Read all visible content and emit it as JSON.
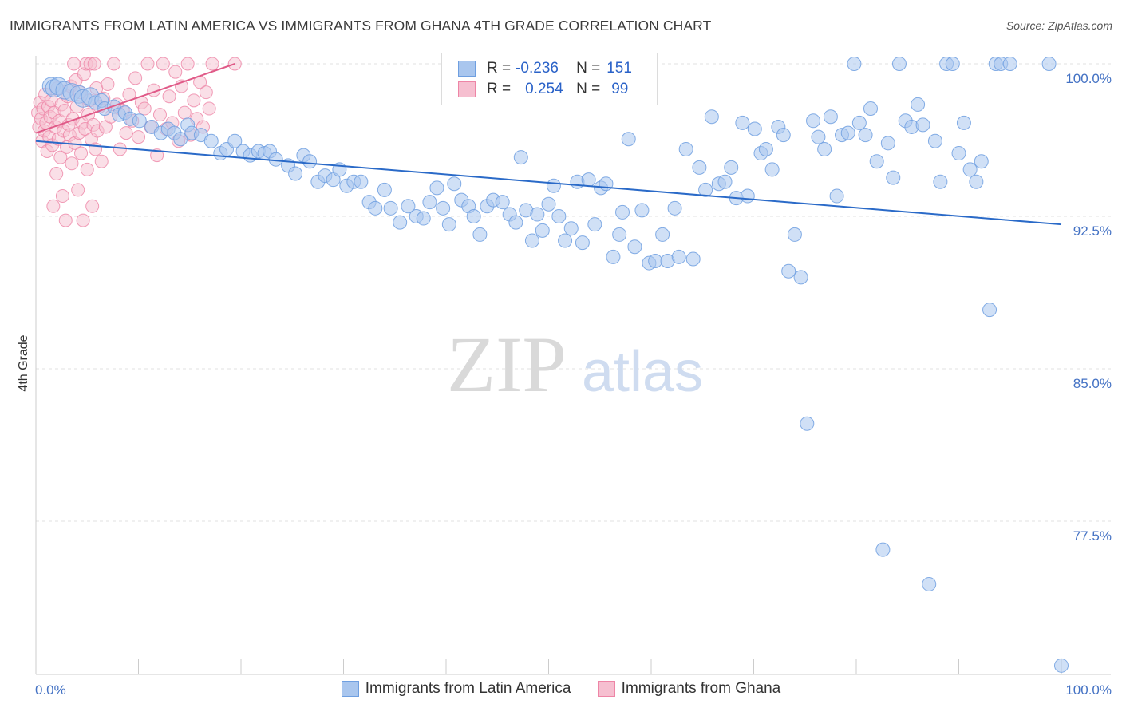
{
  "title": "IMMIGRANTS FROM LATIN AMERICA VS IMMIGRANTS FROM GHANA 4TH GRADE CORRELATION CHART",
  "source": "Source: ZipAtlas.com",
  "watermark": {
    "zip": "ZIP",
    "atlas": "atlas"
  },
  "colors": {
    "blue": "#6f9fe0",
    "blue_fill": "#a9c6ee",
    "blue_line": "#2a6ac8",
    "pink": "#ee85a6",
    "pink_fill": "#f6bfd0",
    "pink_line": "#e05a88",
    "grid": "#e2e2e2",
    "tick_text": "#4472c4"
  },
  "legend": {
    "rows": [
      {
        "r_label": "R =",
        "r_value": "-0.236",
        "n_label": "N =",
        "n_value": "151"
      },
      {
        "r_label": "R =",
        "r_value": "0.254",
        "n_label": "N =",
        "n_value": "99"
      }
    ]
  },
  "bottom_legend": [
    {
      "label": "Immigrants from Latin America"
    },
    {
      "label": "Immigrants from Ghana"
    }
  ],
  "chart_data": {
    "type": "scatter",
    "title": "IMMIGRANTS FROM LATIN AMERICA VS IMMIGRANTS FROM GHANA 4TH GRADE CORRELATION CHART",
    "xlabel": "",
    "ylabel": "4th Grade",
    "xlim": [
      0,
      100
    ],
    "ylim": [
      70.3,
      100.6
    ],
    "x_tick_labels": [
      "0.0%",
      "100.0%"
    ],
    "y_ticks": [
      {
        "value": 100.0,
        "label": "100.0%"
      },
      {
        "value": 92.5,
        "label": "92.5%"
      },
      {
        "value": 85.0,
        "label": "85.0%"
      },
      {
        "value": 77.5,
        "label": "77.5%"
      }
    ],
    "grid": true,
    "legend_position": "top-center",
    "series": [
      {
        "name": "Immigrants from Latin America",
        "color": "#6f9fe0",
        "trend": {
          "x": [
            0,
            100
          ],
          "y": [
            96.2,
            92.1
          ]
        },
        "points": [
          [
            1.5,
            98.9
          ],
          [
            1.8,
            98.8
          ],
          [
            2.2,
            98.9
          ],
          [
            2.8,
            98.7
          ],
          [
            3.5,
            98.6
          ],
          [
            4.2,
            98.5
          ],
          [
            4.6,
            98.3
          ],
          [
            5.3,
            98.4
          ],
          [
            5.8,
            98.1
          ],
          [
            6.4,
            98.2
          ],
          [
            6.7,
            97.8
          ],
          [
            7.6,
            97.9
          ],
          [
            8.1,
            97.5
          ],
          [
            8.7,
            97.6
          ],
          [
            9.2,
            97.3
          ],
          [
            10.1,
            97.2
          ],
          [
            11.3,
            96.9
          ],
          [
            12.2,
            96.6
          ],
          [
            12.9,
            96.8
          ],
          [
            13.5,
            96.6
          ],
          [
            14.1,
            96.3
          ],
          [
            14.8,
            97.0
          ],
          [
            15.2,
            96.6
          ],
          [
            16.1,
            96.5
          ],
          [
            17.1,
            96.2
          ],
          [
            18.0,
            95.6
          ],
          [
            18.6,
            95.8
          ],
          [
            19.4,
            96.2
          ],
          [
            20.2,
            95.7
          ],
          [
            20.9,
            95.5
          ],
          [
            21.7,
            95.7
          ],
          [
            22.3,
            95.6
          ],
          [
            22.8,
            95.7
          ],
          [
            23.4,
            95.3
          ],
          [
            24.6,
            95.0
          ],
          [
            25.3,
            94.6
          ],
          [
            26.1,
            95.5
          ],
          [
            26.7,
            95.2
          ],
          [
            27.5,
            94.2
          ],
          [
            28.2,
            94.5
          ],
          [
            29.0,
            94.3
          ],
          [
            29.6,
            94.8
          ],
          [
            30.3,
            94.0
          ],
          [
            31.0,
            94.2
          ],
          [
            31.7,
            94.2
          ],
          [
            32.5,
            93.2
          ],
          [
            33.1,
            92.9
          ],
          [
            34.0,
            93.8
          ],
          [
            34.6,
            92.9
          ],
          [
            35.5,
            92.2
          ],
          [
            36.3,
            93.0
          ],
          [
            37.1,
            92.5
          ],
          [
            37.8,
            92.4
          ],
          [
            38.4,
            93.2
          ],
          [
            39.1,
            93.9
          ],
          [
            39.7,
            92.9
          ],
          [
            40.3,
            92.1
          ],
          [
            40.8,
            94.1
          ],
          [
            41.5,
            93.3
          ],
          [
            42.2,
            93.0
          ],
          [
            42.7,
            92.5
          ],
          [
            43.3,
            91.6
          ],
          [
            44.0,
            93.0
          ],
          [
            44.6,
            93.3
          ],
          [
            45.5,
            93.2
          ],
          [
            46.2,
            92.6
          ],
          [
            46.8,
            92.2
          ],
          [
            47.3,
            95.4
          ],
          [
            47.8,
            92.8
          ],
          [
            48.4,
            91.3
          ],
          [
            48.9,
            92.6
          ],
          [
            49.4,
            91.8
          ],
          [
            50.0,
            93.1
          ],
          [
            50.5,
            94.0
          ],
          [
            51.0,
            92.5
          ],
          [
            51.6,
            91.3
          ],
          [
            52.2,
            91.9
          ],
          [
            52.8,
            94.2
          ],
          [
            53.3,
            91.2
          ],
          [
            53.9,
            94.3
          ],
          [
            54.5,
            92.1
          ],
          [
            55.1,
            93.9
          ],
          [
            55.6,
            94.1
          ],
          [
            56.3,
            90.5
          ],
          [
            56.9,
            91.6
          ],
          [
            57.2,
            92.7
          ],
          [
            57.8,
            96.3
          ],
          [
            58.4,
            91.0
          ],
          [
            59.1,
            92.8
          ],
          [
            59.8,
            90.2
          ],
          [
            60.4,
            90.3
          ],
          [
            61.1,
            91.6
          ],
          [
            61.6,
            90.3
          ],
          [
            62.3,
            92.9
          ],
          [
            62.7,
            90.5
          ],
          [
            63.4,
            95.8
          ],
          [
            64.1,
            90.4
          ],
          [
            64.7,
            94.9
          ],
          [
            65.3,
            93.8
          ],
          [
            65.9,
            97.4
          ],
          [
            66.6,
            94.1
          ],
          [
            67.2,
            94.2
          ],
          [
            67.8,
            94.9
          ],
          [
            68.3,
            93.4
          ],
          [
            68.9,
            97.1
          ],
          [
            69.4,
            93.5
          ],
          [
            70.1,
            96.8
          ],
          [
            70.7,
            95.6
          ],
          [
            71.2,
            95.8
          ],
          [
            71.8,
            94.8
          ],
          [
            72.4,
            96.9
          ],
          [
            72.9,
            96.5
          ],
          [
            73.4,
            89.8
          ],
          [
            74.0,
            91.6
          ],
          [
            74.6,
            89.5
          ],
          [
            75.2,
            82.3
          ],
          [
            75.8,
            97.2
          ],
          [
            76.3,
            96.4
          ],
          [
            76.9,
            95.8
          ],
          [
            77.5,
            97.4
          ],
          [
            78.1,
            93.5
          ],
          [
            78.6,
            96.5
          ],
          [
            79.2,
            96.6
          ],
          [
            79.8,
            100.0
          ],
          [
            80.3,
            97.1
          ],
          [
            80.9,
            96.5
          ],
          [
            81.4,
            97.8
          ],
          [
            82.0,
            95.2
          ],
          [
            82.6,
            76.1
          ],
          [
            83.1,
            96.1
          ],
          [
            83.6,
            94.4
          ],
          [
            84.2,
            100.0
          ],
          [
            84.8,
            97.2
          ],
          [
            85.4,
            96.9
          ],
          [
            86.0,
            98.0
          ],
          [
            86.5,
            97.0
          ],
          [
            87.1,
            74.4
          ],
          [
            87.7,
            96.2
          ],
          [
            88.2,
            94.2
          ],
          [
            88.8,
            100.0
          ],
          [
            89.4,
            100.0
          ],
          [
            90.0,
            95.6
          ],
          [
            90.5,
            97.1
          ],
          [
            91.1,
            94.8
          ],
          [
            91.7,
            94.2
          ],
          [
            92.2,
            95.2
          ],
          [
            93.0,
            87.9
          ],
          [
            93.6,
            100.0
          ],
          [
            94.1,
            100.0
          ],
          [
            95.0,
            100.0
          ],
          [
            98.8,
            100.0
          ],
          [
            100.0,
            70.4
          ]
        ]
      },
      {
        "name": "Immigrants from Ghana",
        "color": "#ee85a6",
        "trend": {
          "x": [
            0,
            19.4
          ],
          "y": [
            96.6,
            100.0
          ]
        },
        "points": [
          [
            0.2,
            97.6
          ],
          [
            0.3,
            96.9
          ],
          [
            0.4,
            98.1
          ],
          [
            0.5,
            97.3
          ],
          [
            0.6,
            96.2
          ],
          [
            0.7,
            97.8
          ],
          [
            0.8,
            96.7
          ],
          [
            0.9,
            98.5
          ],
          [
            1.0,
            97.1
          ],
          [
            1.1,
            95.7
          ],
          [
            1.2,
            97.9
          ],
          [
            1.3,
            96.4
          ],
          [
            1.4,
            97.4
          ],
          [
            1.5,
            98.2
          ],
          [
            1.6,
            96.0
          ],
          [
            1.7,
            93.0
          ],
          [
            1.8,
            97.6
          ],
          [
            1.9,
            96.9
          ],
          [
            2.0,
            94.6
          ],
          [
            2.1,
            98.8
          ],
          [
            2.2,
            96.3
          ],
          [
            2.3,
            97.2
          ],
          [
            2.4,
            95.4
          ],
          [
            2.5,
            98.0
          ],
          [
            2.6,
            93.5
          ],
          [
            2.7,
            96.7
          ],
          [
            2.8,
            97.7
          ],
          [
            2.9,
            92.3
          ],
          [
            3.0,
            95.9
          ],
          [
            3.1,
            98.4
          ],
          [
            3.2,
            97.0
          ],
          [
            3.3,
            96.5
          ],
          [
            3.4,
            98.9
          ],
          [
            3.5,
            95.1
          ],
          [
            3.6,
            97.3
          ],
          [
            3.7,
            100.0
          ],
          [
            3.8,
            96.1
          ],
          [
            3.9,
            99.2
          ],
          [
            4.0,
            97.9
          ],
          [
            4.1,
            93.8
          ],
          [
            4.2,
            96.6
          ],
          [
            4.3,
            98.6
          ],
          [
            4.4,
            95.6
          ],
          [
            4.5,
            97.1
          ],
          [
            4.6,
            92.3
          ],
          [
            4.7,
            99.5
          ],
          [
            4.8,
            96.8
          ],
          [
            4.9,
            100.0
          ],
          [
            5.0,
            94.8
          ],
          [
            5.1,
            97.5
          ],
          [
            5.2,
            98.2
          ],
          [
            5.3,
            100.0
          ],
          [
            5.4,
            96.3
          ],
          [
            5.5,
            93.0
          ],
          [
            5.6,
            97.0
          ],
          [
            5.7,
            100.0
          ],
          [
            5.8,
            95.8
          ],
          [
            5.9,
            98.8
          ],
          [
            6.0,
            96.7
          ],
          [
            6.2,
            97.9
          ],
          [
            6.4,
            95.2
          ],
          [
            6.6,
            98.3
          ],
          [
            6.8,
            96.9
          ],
          [
            7.0,
            99.0
          ],
          [
            7.3,
            97.4
          ],
          [
            7.6,
            100.0
          ],
          [
            7.9,
            98.0
          ],
          [
            8.2,
            95.8
          ],
          [
            8.5,
            97.7
          ],
          [
            8.8,
            96.6
          ],
          [
            9.1,
            98.5
          ],
          [
            9.4,
            97.2
          ],
          [
            9.7,
            99.3
          ],
          [
            10.0,
            96.4
          ],
          [
            10.3,
            98.1
          ],
          [
            10.6,
            97.8
          ],
          [
            10.9,
            100.0
          ],
          [
            11.2,
            96.9
          ],
          [
            11.5,
            98.7
          ],
          [
            11.8,
            95.5
          ],
          [
            12.1,
            97.5
          ],
          [
            12.4,
            100.0
          ],
          [
            12.7,
            96.8
          ],
          [
            13.0,
            98.4
          ],
          [
            13.3,
            97.1
          ],
          [
            13.6,
            99.6
          ],
          [
            13.9,
            96.2
          ],
          [
            14.2,
            98.9
          ],
          [
            14.5,
            97.6
          ],
          [
            14.8,
            100.0
          ],
          [
            15.1,
            96.5
          ],
          [
            15.4,
            98.2
          ],
          [
            15.7,
            97.3
          ],
          [
            16.0,
            99.1
          ],
          [
            16.3,
            96.9
          ],
          [
            16.6,
            98.6
          ],
          [
            16.9,
            97.8
          ],
          [
            17.2,
            100.0
          ],
          [
            19.4,
            100.0
          ]
        ]
      }
    ]
  }
}
